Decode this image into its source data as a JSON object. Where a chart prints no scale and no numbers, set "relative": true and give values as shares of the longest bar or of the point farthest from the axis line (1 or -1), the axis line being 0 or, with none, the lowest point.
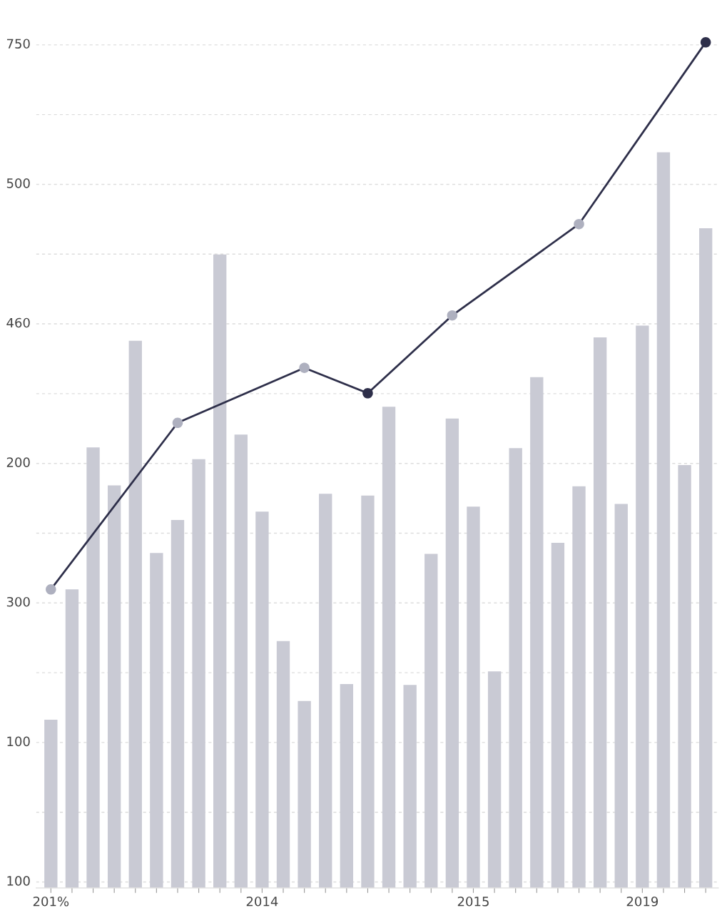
{
  "chart_data": {
    "type": "bar",
    "categories": [
      "201%",
      null,
      null,
      null,
      null,
      null,
      null,
      null,
      null,
      null,
      "2014",
      null,
      null,
      null,
      null,
      null,
      null,
      null,
      null,
      null,
      "2015",
      null,
      null,
      null,
      null,
      null,
      null,
      null,
      "2019",
      null,
      null,
      null
    ],
    "relative": true,
    "series": [
      {
        "color": "#c9cad4",
        "values": [
          0.199,
          0.353,
          0.521,
          0.476,
          0.647,
          0.396,
          0.435,
          0.507,
          0.749,
          0.536,
          0.445,
          0.292,
          0.221,
          0.466,
          0.241,
          0.464,
          0.569,
          0.24,
          0.395,
          0.555,
          0.451,
          0.256,
          0.52,
          0.604,
          0.408,
          0.475,
          0.651,
          0.454,
          0.665,
          0.87,
          0.5,
          0.78
        ]
      },
      {
        "type": "line",
        "color": "#2e2f4a",
        "values": [
          0.353,
          null,
          null,
          null,
          null,
          null,
          0.55,
          null,
          null,
          null,
          null,
          null,
          0.615,
          null,
          null,
          0.585,
          null,
          null,
          null,
          0.677,
          null,
          null,
          null,
          null,
          null,
          0.785,
          null,
          null,
          null,
          null,
          null,
          1.0
        ],
        "colors": [
          "#aeb0bf",
          null,
          null,
          null,
          null,
          null,
          "#aeb0bf",
          null,
          null,
          null,
          null,
          null,
          "#aeb0bf",
          null,
          null,
          "#2e2f4a",
          null,
          null,
          null,
          "#aeb0bf",
          null,
          null,
          null,
          null,
          null,
          "#aeb0bf",
          null,
          null,
          null,
          null,
          null,
          "#2e2f4a"
        ]
      }
    ],
    "annotations": [
      "100",
      "100",
      "300",
      "200",
      "460",
      "500",
      "750"
    ],
    "grid": "y",
    "marker": "circle",
    "line_style": "solid"
  }
}
